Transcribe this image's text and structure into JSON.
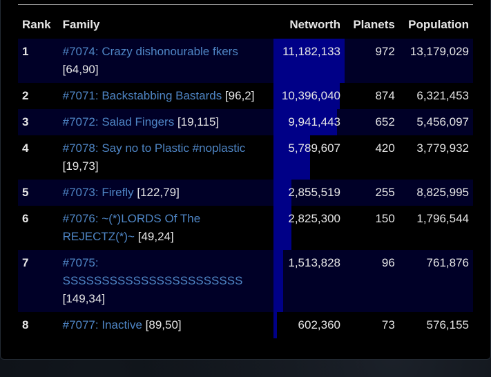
{
  "headers": {
    "rank": "Rank",
    "family": "Family",
    "networth": "Networth",
    "planets": "Planets",
    "population": "Population"
  },
  "rows": [
    {
      "rank": "1",
      "family": "#7074: Crazy dishonourable fkers",
      "coords": "[64,90]",
      "networth": "11,182,133",
      "networth_fraction": 1.0,
      "planets": "972",
      "population": "13,179,029"
    },
    {
      "rank": "2",
      "family": "#7071: Backstabbing Bastards",
      "coords": "[96,2]",
      "networth": "10,396,040",
      "networth_fraction": 0.93,
      "planets": "874",
      "population": "6,321,453"
    },
    {
      "rank": "3",
      "family": "#7072: Salad Fingers",
      "coords": "[19,115]",
      "networth": "9,941,443",
      "networth_fraction": 0.889,
      "planets": "652",
      "population": "5,456,097"
    },
    {
      "rank": "4",
      "family": "#7078: Say no to Plastic #noplastic",
      "coords": "[19,73]",
      "networth": "5,789,607",
      "networth_fraction": 0.518,
      "planets": "420",
      "population": "3,779,932"
    },
    {
      "rank": "5",
      "family": "#7073: Firefly",
      "coords": "[122,79]",
      "networth": "2,855,519",
      "networth_fraction": 0.255,
      "planets": "255",
      "population": "8,825,995"
    },
    {
      "rank": "6",
      "family": "#7076: ~(*)LORDS Of The REJECTZ(*)~",
      "coords": "[49,24]",
      "networth": "2,825,300",
      "networth_fraction": 0.253,
      "planets": "150",
      "population": "1,796,544"
    },
    {
      "rank": "7",
      "family": "#7075: SSSSSSSSSSSSSSSSSSSSSSS",
      "coords": "[149,34]",
      "networth": "1,513,828",
      "networth_fraction": 0.135,
      "planets": "96",
      "population": "761,876"
    },
    {
      "rank": "8",
      "family": "#7077: Inactive",
      "coords": "[89,50]",
      "networth": "602,360",
      "networth_fraction": 0.054,
      "planets": "73",
      "population": "576,155"
    }
  ],
  "colors": {
    "link": "#4f86c6",
    "bar": "#000087",
    "row_alt": "#000027"
  }
}
